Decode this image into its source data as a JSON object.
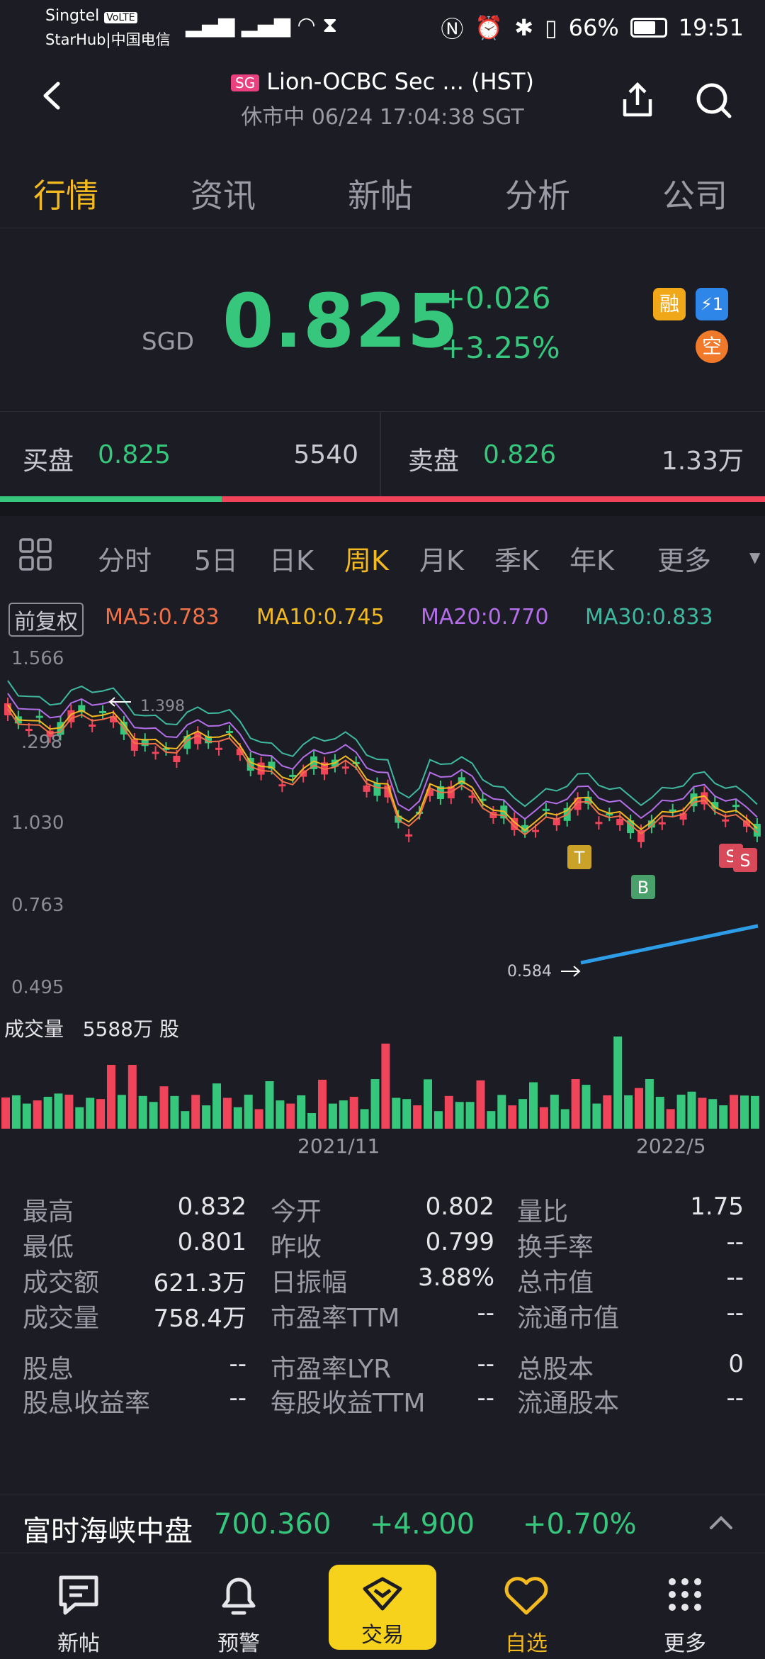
{
  "status_bar": {
    "carrier1": "Singtel",
    "volte": "VoLTE",
    "carrier2": "StarHub|中国电信",
    "battery": "66%",
    "time": "19:51"
  },
  "header": {
    "market_badge": "SG",
    "title": "Lion-OCBC Sec ... (HST)",
    "subtitle": "休市中 06/24 17:04:38 SGT"
  },
  "tabs": [
    "行情",
    "资讯",
    "新帖",
    "分析",
    "公司"
  ],
  "quote": {
    "currency": "SGD",
    "price": "0.825",
    "change": "+0.026",
    "change_pct": "+3.25%",
    "badges": [
      "融",
      "⚡1",
      "空"
    ],
    "color_up": "#36c77d",
    "color_down": "#f0445a"
  },
  "bid_ask": {
    "bid_label": "买盘",
    "bid_price": "0.825",
    "bid_volume": "5540",
    "ask_label": "卖盘",
    "ask_price": "0.826",
    "ask_volume": "1.33万",
    "bid_ratio": 0.29
  },
  "chart_tabs": {
    "items": [
      "分时",
      "5日",
      "日K",
      "周K",
      "月K",
      "季K",
      "年K",
      "更多"
    ],
    "active": "周K"
  },
  "ma": {
    "adjust": "前复权",
    "ma5": "MA5:0.783",
    "ma10": "MA10:0.745",
    "ma20": "MA20:0.770",
    "ma30": "MA30:0.833"
  },
  "chart_data": {
    "type": "candlestick",
    "y_ticks": [
      "1.566",
      "1.030",
      "0.763",
      "0.495"
    ],
    "partial_tick": ".298",
    "high_marker": "1.398",
    "low_marker": "0.584",
    "x_ticks": [
      "2021/11",
      "2022/5"
    ],
    "signals": [
      "T",
      "B",
      "S",
      "S"
    ],
    "volume_label": "成交量",
    "volume_value": "5588万 股"
  },
  "stats": {
    "rows": [
      [
        "最高",
        "0.832",
        "今开",
        "0.802",
        "量比",
        "1.75"
      ],
      [
        "最低",
        "0.801",
        "昨收",
        "0.799",
        "换手率",
        "--"
      ],
      [
        "成交额",
        "621.3万",
        "日振幅",
        "3.88%",
        "总市值",
        "--"
      ],
      [
        "成交量",
        "758.4万",
        "市盈率TTM",
        "--",
        "流通市值",
        "--"
      ],
      [
        "股息",
        "--",
        "市盈率LYR",
        "--",
        "总股本",
        "0"
      ],
      [
        "股息收益率",
        "--",
        "每股收益TTM",
        "--",
        "流通股本",
        "--"
      ]
    ]
  },
  "ticker": {
    "name": "富时海峡中盘",
    "value": "700.360",
    "change": "+4.900",
    "pct": "+0.70%"
  },
  "nav": {
    "items": [
      "新帖",
      "预警",
      "交易",
      "自选",
      "更多"
    ]
  }
}
